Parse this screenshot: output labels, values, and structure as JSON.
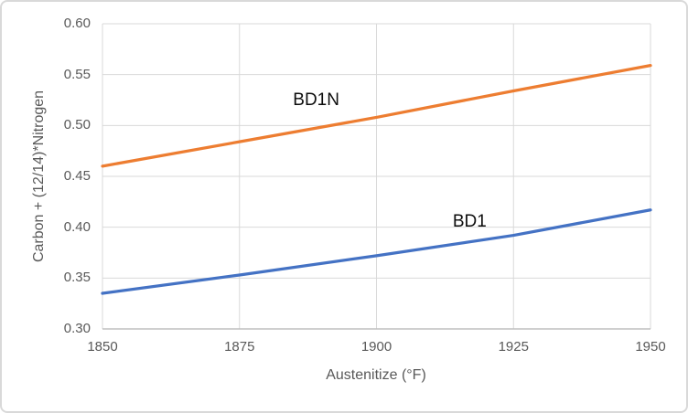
{
  "chart_data": {
    "type": "line",
    "x": [
      1850,
      1875,
      1900,
      1925,
      1950
    ],
    "series": [
      {
        "name": "BD1N",
        "color": "#ED7D31",
        "values": [
          0.46,
          0.484,
          0.508,
          0.534,
          0.559
        ]
      },
      {
        "name": "BD1",
        "color": "#4472C4",
        "values": [
          0.335,
          0.353,
          0.372,
          0.392,
          0.417
        ]
      }
    ],
    "title": "",
    "xlabel": "Austenitize (°F)",
    "ylabel": "Carbon + (12/14)*Nitrogen",
    "xlim": [
      1850,
      1950
    ],
    "ylim": [
      0.3,
      0.6
    ],
    "xticks": [
      1850,
      1875,
      1900,
      1925,
      1950
    ],
    "yticks": [
      0.3,
      0.35,
      0.4,
      0.45,
      0.5,
      0.55,
      0.6
    ],
    "grid": true,
    "legend": "none",
    "annotations": [
      {
        "text": "BD1N",
        "x": 1889,
        "y": 0.525
      },
      {
        "text": "BD1",
        "x": 1917,
        "y": 0.405
      }
    ],
    "colors": {
      "grid": "#D9D9D9",
      "axis_line": "#BFBFBF",
      "tick_text": "#595959",
      "annotation_text": "#0D0D0D",
      "frame_border": "#D9D9D9",
      "background": "#FFFFFF"
    }
  }
}
